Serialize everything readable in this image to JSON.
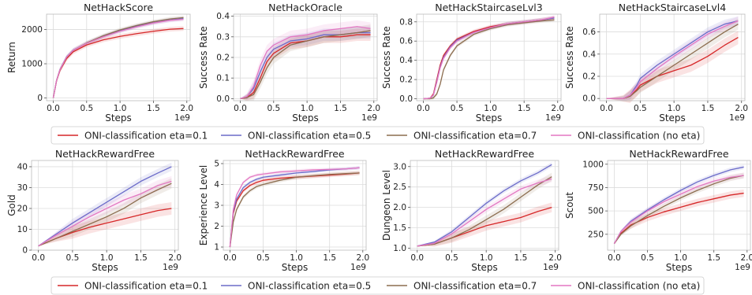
{
  "legend_rows": [
    {
      "entries": [
        "ONI-classification eta=0.1",
        "ONI-classification eta=0.5",
        "ONI-classification eta=0.7",
        "ONI-classification (no eta)"
      ]
    },
    {
      "entries": [
        "ONI-classification eta=0.1",
        "ONI-classification eta=0.5",
        "ONI-classification eta=0.7",
        "ONI-classification (no eta)"
      ]
    }
  ],
  "colors": {
    "eta01": "#d62728",
    "eta05": "#6b6bc9",
    "eta07": "#8c6d4f",
    "noeta": "#e377c2"
  },
  "chart_data": [
    {
      "type": "line",
      "title": "NetHackScore",
      "xlabel": "Steps",
      "ylabel": "Return",
      "x_exponent_label": "1e9",
      "xlim": [
        -0.1,
        2.05
      ],
      "ylim": [
        -80,
        2450
      ],
      "xticks": [
        0.0,
        0.5,
        1.0,
        1.5,
        2.0
      ],
      "xtick_labels": [
        "0.0",
        "0.5",
        "1.0",
        "1.5",
        "2.0"
      ],
      "yticks": [
        0,
        1000,
        2000
      ],
      "ytick_labels": [
        "0",
        "1000",
        "2000"
      ],
      "grid": true,
      "x": [
        0,
        0.05,
        0.1,
        0.2,
        0.3,
        0.5,
        0.75,
        1.0,
        1.25,
        1.5,
        1.75,
        1.95
      ],
      "series": [
        {
          "name": "ONI-classification eta=0.1",
          "color_key": "eta01",
          "values": [
            0,
            500,
            800,
            1150,
            1350,
            1550,
            1700,
            1800,
            1880,
            1950,
            2010,
            2030
          ],
          "band": 70
        },
        {
          "name": "ONI-classification eta=0.5",
          "color_key": "eta05",
          "values": [
            0,
            520,
            830,
            1200,
            1400,
            1600,
            1800,
            1960,
            2100,
            2200,
            2280,
            2320
          ],
          "band": 60
        },
        {
          "name": "ONI-classification eta=0.7",
          "color_key": "eta07",
          "values": [
            0,
            510,
            820,
            1190,
            1390,
            1610,
            1820,
            1990,
            2120,
            2230,
            2310,
            2350
          ],
          "band": 60
        },
        {
          "name": "ONI-classification (no eta)",
          "color_key": "noeta",
          "values": [
            0,
            515,
            825,
            1195,
            1395,
            1600,
            1790,
            1950,
            2080,
            2190,
            2270,
            2300
          ],
          "band": 60
        }
      ]
    },
    {
      "type": "line",
      "title": "NetHackOracle",
      "xlabel": "Steps",
      "ylabel": "Success Rate",
      "x_exponent_label": "1e9",
      "xlim": [
        -0.1,
        2.05
      ],
      "ylim": [
        -0.01,
        0.41
      ],
      "xticks": [
        0.0,
        0.5,
        1.0,
        1.5,
        2.0
      ],
      "xtick_labels": [
        "0.0",
        "0.5",
        "1.0",
        "1.5",
        "2.0"
      ],
      "yticks": [
        0.0,
        0.1,
        0.2,
        0.3,
        0.4
      ],
      "ytick_labels": [
        "0.0",
        "0.1",
        "0.2",
        "0.3",
        "0.4"
      ],
      "grid": true,
      "x": [
        0,
        0.1,
        0.2,
        0.3,
        0.4,
        0.5,
        0.75,
        1.0,
        1.25,
        1.5,
        1.75,
        1.95
      ],
      "series": [
        {
          "name": "ONI-classification eta=0.1",
          "color_key": "eta01",
          "values": [
            0,
            0.005,
            0.03,
            0.1,
            0.18,
            0.22,
            0.27,
            0.28,
            0.3,
            0.3,
            0.31,
            0.31
          ],
          "band": 0.03
        },
        {
          "name": "ONI-classification eta=0.5",
          "color_key": "eta05",
          "values": [
            0,
            0.01,
            0.05,
            0.13,
            0.2,
            0.24,
            0.28,
            0.29,
            0.31,
            0.31,
            0.32,
            0.32
          ],
          "band": 0.03
        },
        {
          "name": "ONI-classification eta=0.7",
          "color_key": "eta07",
          "values": [
            0,
            0.005,
            0.02,
            0.08,
            0.15,
            0.2,
            0.26,
            0.28,
            0.3,
            0.31,
            0.32,
            0.33
          ],
          "band": 0.03
        },
        {
          "name": "ONI-classification (no eta)",
          "color_key": "noeta",
          "values": [
            0,
            0.01,
            0.06,
            0.16,
            0.23,
            0.26,
            0.3,
            0.31,
            0.33,
            0.34,
            0.35,
            0.34
          ],
          "band": 0.03
        }
      ]
    },
    {
      "type": "line",
      "title": "NetHackStaircaseLvl3",
      "xlabel": "Steps",
      "ylabel": "Success Rate",
      "x_exponent_label": "1e9",
      "xlim": [
        -0.1,
        2.05
      ],
      "ylim": [
        -0.02,
        0.88
      ],
      "xticks": [
        0.0,
        0.5,
        1.0,
        1.5,
        2.0
      ],
      "xtick_labels": [
        "0.0",
        "0.5",
        "1.0",
        "1.5",
        "2.0"
      ],
      "yticks": [
        0.0,
        0.2,
        0.4,
        0.6,
        0.8
      ],
      "ytick_labels": [
        "0.0",
        "0.2",
        "0.4",
        "0.6",
        "0.8"
      ],
      "grid": true,
      "x": [
        0,
        0.1,
        0.15,
        0.2,
        0.25,
        0.3,
        0.4,
        0.5,
        0.75,
        1.0,
        1.25,
        1.5,
        1.75,
        1.95
      ],
      "series": [
        {
          "name": "ONI-classification eta=0.1",
          "color_key": "eta01",
          "values": [
            0,
            0.005,
            0.05,
            0.2,
            0.35,
            0.45,
            0.55,
            0.62,
            0.7,
            0.75,
            0.78,
            0.8,
            0.82,
            0.84
          ],
          "band": 0.02
        },
        {
          "name": "ONI-classification eta=0.5",
          "color_key": "eta05",
          "values": [
            0,
            0.005,
            0.04,
            0.18,
            0.33,
            0.43,
            0.54,
            0.61,
            0.69,
            0.74,
            0.78,
            0.8,
            0.82,
            0.84
          ],
          "band": 0.02
        },
        {
          "name": "ONI-classification eta=0.7",
          "color_key": "eta07",
          "values": [
            0,
            0.0,
            0.01,
            0.05,
            0.15,
            0.3,
            0.45,
            0.55,
            0.67,
            0.73,
            0.77,
            0.79,
            0.81,
            0.82
          ],
          "band": 0.02
        },
        {
          "name": "ONI-classification (no eta)",
          "color_key": "noeta",
          "values": [
            0,
            0.005,
            0.04,
            0.17,
            0.32,
            0.42,
            0.53,
            0.6,
            0.69,
            0.74,
            0.78,
            0.8,
            0.82,
            0.85
          ],
          "band": 0.02
        }
      ]
    },
    {
      "type": "line",
      "title": "NetHackStaircaseLvl4",
      "xlabel": "Steps",
      "ylabel": "Success Rate",
      "x_exponent_label": "1e9",
      "xlim": [
        -0.1,
        2.05
      ],
      "ylim": [
        -0.02,
        0.76
      ],
      "xticks": [
        0.0,
        0.5,
        1.0,
        1.5,
        2.0
      ],
      "xtick_labels": [
        "0.0",
        "0.5",
        "1.0",
        "1.5",
        "2.0"
      ],
      "yticks": [
        0.0,
        0.2,
        0.4,
        0.6
      ],
      "ytick_labels": [
        "0.0",
        "0.2",
        "0.4",
        "0.6"
      ],
      "grid": true,
      "x": [
        0,
        0.25,
        0.35,
        0.45,
        0.5,
        0.75,
        1.0,
        1.25,
        1.5,
        1.75,
        1.95
      ],
      "series": [
        {
          "name": "ONI-classification eta=0.1",
          "color_key": "eta01",
          "values": [
            0,
            0.0,
            0.02,
            0.08,
            0.12,
            0.2,
            0.25,
            0.3,
            0.38,
            0.48,
            0.55
          ],
          "band": 0.06
        },
        {
          "name": "ONI-classification eta=0.5",
          "color_key": "eta05",
          "values": [
            0,
            0.0,
            0.03,
            0.12,
            0.18,
            0.3,
            0.4,
            0.5,
            0.6,
            0.67,
            0.7
          ],
          "band": 0.04
        },
        {
          "name": "ONI-classification eta=0.7",
          "color_key": "eta07",
          "values": [
            0,
            0.0,
            0.02,
            0.07,
            0.1,
            0.2,
            0.3,
            0.4,
            0.5,
            0.6,
            0.67
          ],
          "band": 0.05
        },
        {
          "name": "ONI-classification (no eta)",
          "color_key": "noeta",
          "values": [
            0,
            0.0,
            0.03,
            0.1,
            0.15,
            0.27,
            0.38,
            0.48,
            0.58,
            0.65,
            0.7
          ],
          "band": 0.04
        }
      ]
    },
    {
      "type": "line",
      "title": "NetHackRewardFree",
      "xlabel": "Steps",
      "ylabel": "Gold",
      "x_exponent_label": "1e9",
      "xlim": [
        -0.1,
        2.05
      ],
      "ylim": [
        0,
        43
      ],
      "xticks": [
        0.0,
        0.5,
        1.0,
        1.5,
        2.0
      ],
      "xtick_labels": [
        "0.0",
        "0.5",
        "1.0",
        "1.5",
        "2.0"
      ],
      "yticks": [
        0,
        10,
        20,
        30,
        40
      ],
      "ytick_labels": [
        "0",
        "10",
        "20",
        "30",
        "40"
      ],
      "grid": true,
      "x": [
        0,
        0.25,
        0.5,
        0.75,
        1.0,
        1.25,
        1.5,
        1.75,
        1.95
      ],
      "series": [
        {
          "name": "ONI-classification eta=0.1",
          "color_key": "eta01",
          "values": [
            2,
            5.5,
            8.5,
            11,
            13,
            15,
            17,
            19,
            20
          ],
          "band": 3
        },
        {
          "name": "ONI-classification eta=0.5",
          "color_key": "eta05",
          "values": [
            2,
            7.5,
            13,
            18,
            23,
            28,
            33,
            37,
            40
          ],
          "band": 2
        },
        {
          "name": "ONI-classification eta=0.7",
          "color_key": "eta07",
          "values": [
            2,
            5.5,
            9,
            12.5,
            16,
            20,
            25,
            29,
            32
          ],
          "band": 2.5
        },
        {
          "name": "ONI-classification (no eta)",
          "color_key": "noeta",
          "values": [
            2,
            7,
            11.5,
            16,
            20,
            24,
            27,
            31,
            33
          ],
          "band": 2.5
        }
      ]
    },
    {
      "type": "line",
      "title": "NetHackRewardFree",
      "xlabel": "Steps",
      "ylabel": "Experience Level",
      "x_exponent_label": "1e9",
      "xlim": [
        -0.1,
        2.05
      ],
      "ylim": [
        0.85,
        5.15
      ],
      "xticks": [
        0.0,
        0.5,
        1.0,
        1.5,
        2.0
      ],
      "xtick_labels": [
        "0.0",
        "0.5",
        "1.0",
        "1.5",
        "2.0"
      ],
      "yticks": [
        1,
        2,
        3,
        4,
        5
      ],
      "ytick_labels": [
        "1",
        "2",
        "3",
        "4",
        "5"
      ],
      "grid": true,
      "x": [
        0,
        0.05,
        0.1,
        0.2,
        0.3,
        0.4,
        0.5,
        0.75,
        1.0,
        1.25,
        1.5,
        1.75,
        1.95
      ],
      "series": [
        {
          "name": "ONI-classification eta=0.1",
          "color_key": "eta01",
          "values": [
            1,
            2.6,
            3.2,
            3.7,
            3.95,
            4.1,
            4.2,
            4.3,
            4.35,
            4.4,
            4.45,
            4.5,
            4.55
          ],
          "band": 0.1
        },
        {
          "name": "ONI-classification eta=0.5",
          "color_key": "eta05",
          "values": [
            1,
            2.7,
            3.3,
            3.85,
            4.1,
            4.25,
            4.35,
            4.45,
            4.55,
            4.62,
            4.7,
            4.75,
            4.8
          ],
          "band": 0.08
        },
        {
          "name": "ONI-classification eta=0.7",
          "color_key": "eta07",
          "values": [
            1,
            2.2,
            2.8,
            3.4,
            3.7,
            3.9,
            4.0,
            4.2,
            4.35,
            4.42,
            4.48,
            4.52,
            4.55
          ],
          "band": 0.1
        },
        {
          "name": "ONI-classification (no eta)",
          "color_key": "noeta",
          "values": [
            1,
            2.8,
            3.5,
            4.1,
            4.35,
            4.45,
            4.5,
            4.6,
            4.65,
            4.7,
            4.72,
            4.75,
            4.8
          ],
          "band": 0.08
        }
      ]
    },
    {
      "type": "line",
      "title": "NetHackRewardFree",
      "xlabel": "Steps",
      "ylabel": "Dungeon Level",
      "x_exponent_label": "1e9",
      "xlim": [
        -0.1,
        2.05
      ],
      "ylim": [
        0.95,
        3.15
      ],
      "xticks": [
        0.0,
        0.5,
        1.0,
        1.5,
        2.0
      ],
      "xtick_labels": [
        "0.0",
        "0.5",
        "1.0",
        "1.5",
        "2.0"
      ],
      "yticks": [
        1.0,
        1.5,
        2.0,
        2.5,
        3.0
      ],
      "ytick_labels": [
        "1.0",
        "1.5",
        "2.0",
        "2.5",
        "3.0"
      ],
      "grid": true,
      "x": [
        0,
        0.25,
        0.5,
        0.75,
        1.0,
        1.25,
        1.5,
        1.75,
        1.95
      ],
      "series": [
        {
          "name": "ONI-classification eta=0.1",
          "color_key": "eta01",
          "values": [
            1.05,
            1.1,
            1.25,
            1.4,
            1.55,
            1.65,
            1.75,
            1.9,
            2.0
          ],
          "band": 0.12
        },
        {
          "name": "ONI-classification eta=0.5",
          "color_key": "eta05",
          "values": [
            1.05,
            1.15,
            1.4,
            1.75,
            2.1,
            2.4,
            2.65,
            2.85,
            3.05
          ],
          "band": 0.06
        },
        {
          "name": "ONI-classification eta=0.7",
          "color_key": "eta07",
          "values": [
            1.05,
            1.1,
            1.25,
            1.45,
            1.7,
            1.95,
            2.25,
            2.55,
            2.75
          ],
          "band": 0.1
        },
        {
          "name": "ONI-classification (no eta)",
          "color_key": "noeta",
          "values": [
            1.05,
            1.12,
            1.35,
            1.65,
            1.95,
            2.2,
            2.45,
            2.6,
            2.7
          ],
          "band": 0.08
        }
      ]
    },
    {
      "type": "line",
      "title": "NetHackRewardFree",
      "xlabel": "Steps",
      "ylabel": "Scout",
      "x_exponent_label": "1e9",
      "xlim": [
        -0.1,
        2.05
      ],
      "ylim": [
        80,
        1040
      ],
      "xticks": [
        0.0,
        0.5,
        1.0,
        1.5,
        2.0
      ],
      "xtick_labels": [
        "0.0",
        "0.5",
        "1.0",
        "1.5",
        "2.0"
      ],
      "yticks": [
        250,
        500,
        750,
        1000
      ],
      "ytick_labels": [
        "250",
        "500",
        "750",
        "1000"
      ],
      "grid": true,
      "x": [
        0,
        0.1,
        0.25,
        0.5,
        0.75,
        1.0,
        1.25,
        1.5,
        1.75,
        1.95
      ],
      "series": [
        {
          "name": "ONI-classification eta=0.1",
          "color_key": "eta01",
          "values": [
            150,
            260,
            350,
            430,
            490,
            540,
            590,
            630,
            670,
            690
          ],
          "band": 40
        },
        {
          "name": "ONI-classification eta=0.5",
          "color_key": "eta05",
          "values": [
            150,
            280,
            390,
            510,
            620,
            720,
            810,
            880,
            940,
            970
          ],
          "band": 25
        },
        {
          "name": "ONI-classification eta=0.7",
          "color_key": "eta07",
          "values": [
            150,
            250,
            340,
            450,
            550,
            640,
            720,
            790,
            850,
            880
          ],
          "band": 30
        },
        {
          "name": "ONI-classification (no eta)",
          "color_key": "noeta",
          "values": [
            150,
            280,
            380,
            500,
            600,
            680,
            760,
            820,
            860,
            880
          ],
          "band": 30
        }
      ]
    }
  ]
}
